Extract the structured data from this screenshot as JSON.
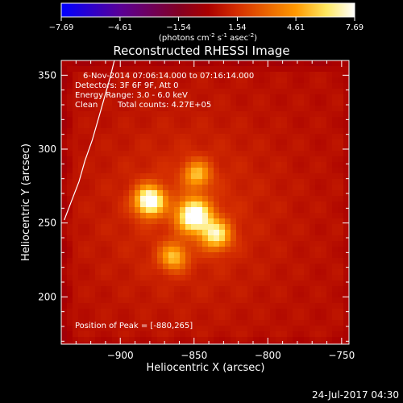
{
  "chart_data": {
    "type": "heatmap",
    "title": "Reconstructed RHESSI Image",
    "xlabel": "Heliocentric X (arcsec)",
    "ylabel": "Heliocentric Y (arcsec)",
    "xlim": [
      -940,
      -745
    ],
    "ylim": [
      168,
      360
    ],
    "x_ticks": [
      -900,
      -850,
      -800,
      -750
    ],
    "y_ticks": [
      200,
      250,
      300,
      350
    ],
    "colorbar": {
      "range": [
        -7.69,
        7.69
      ],
      "ticks": [
        -7.69,
        -4.61,
        -1.54,
        1.54,
        4.61,
        7.69
      ],
      "label_text": "(photons cm",
      "label_sup1": "-2",
      "label_mid1": " s",
      "label_sup2": "-1",
      "label_mid2": " asec",
      "label_sup3": "-2",
      "label_end": ")"
    },
    "colormap": {
      "stops": [
        {
          "value": -7.69,
          "color": "#0000ff"
        },
        {
          "value": -4.61,
          "color": "#5a0097"
        },
        {
          "value": -1.54,
          "color": "#820024"
        },
        {
          "value": 0.0,
          "color": "#aa0000"
        },
        {
          "value": 1.54,
          "color": "#d52e00"
        },
        {
          "value": 4.61,
          "color": "#ff9900"
        },
        {
          "value": 6.2,
          "color": "#ffe860"
        },
        {
          "value": 7.69,
          "color": "#ffffff"
        }
      ]
    },
    "image": {
      "background_level": 0.45,
      "sources": [
        {
          "x": -880,
          "y": 265,
          "peak": 7.69,
          "sigma": 7.0
        },
        {
          "x": -850,
          "y": 255,
          "peak": 7.5,
          "sigma": 8.0
        },
        {
          "x": -835,
          "y": 242,
          "peak": 5.5,
          "sigma": 7.0
        },
        {
          "x": -848,
          "y": 283,
          "peak": 4.2,
          "sigma": 6.5
        },
        {
          "x": -864,
          "y": 227,
          "peak": 4.3,
          "sigma": 6.5
        }
      ]
    },
    "annotations": {
      "time_range": "6-Nov-2014 07:06:14.000 to 07:16:14.000",
      "detectors": "Detectors: 3F 6F 9F, Att 0",
      "energy": "Energy Range: 3.0 - 6.0 keV",
      "method": "Clean",
      "counts": "Total counts: 4.27E+05",
      "peak_position": "Position of Peak = [-880,265]",
      "timestamp": "24-Jul-2017 04:30"
    },
    "limb": [
      [
        -938,
        252
      ],
      [
        -933,
        265
      ],
      [
        -928,
        278
      ],
      [
        -924,
        292
      ],
      [
        -919,
        306
      ],
      [
        -915,
        320
      ],
      [
        -911,
        334
      ],
      [
        -907,
        348
      ],
      [
        -904,
        360
      ]
    ],
    "grid": false,
    "legend": "none"
  }
}
